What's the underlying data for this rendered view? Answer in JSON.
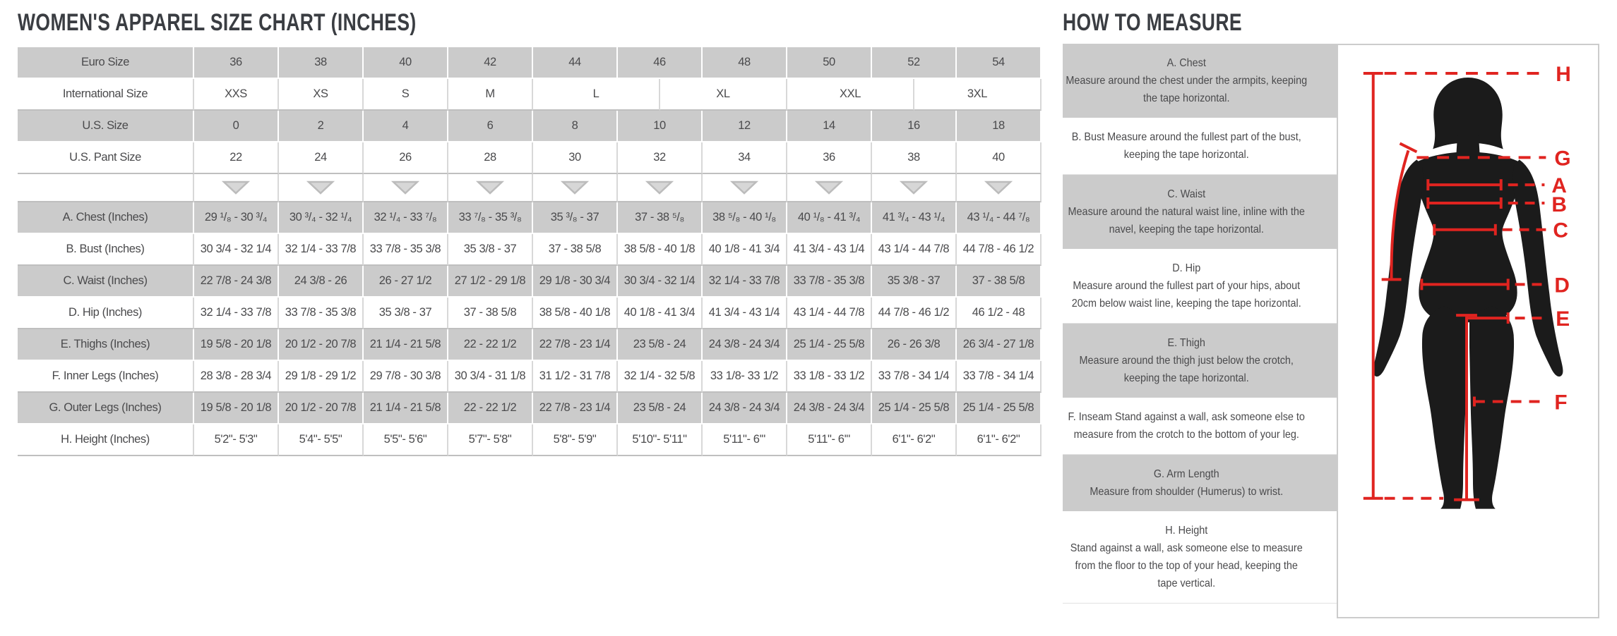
{
  "size_chart": {
    "title": "WOMEN'S APPAREL SIZE CHART (INCHES)",
    "euro": {
      "label": "Euro Size",
      "values": [
        "36",
        "38",
        "40",
        "42",
        "44",
        "46",
        "48",
        "50",
        "52",
        "54"
      ]
    },
    "international": {
      "label": "International Size",
      "cells": [
        "XXS",
        "XS",
        "S",
        "M",
        "L",
        "XL",
        "XXL",
        "3XL"
      ]
    },
    "us": {
      "label": "U.S. Size",
      "values": [
        "0",
        "2",
        "4",
        "6",
        "8",
        "10",
        "12",
        "14",
        "16",
        "18"
      ]
    },
    "us_pant": {
      "label": "U.S. Pant Size",
      "values": [
        "22",
        "24",
        "26",
        "28",
        "30",
        "32",
        "34",
        "36",
        "38",
        "40"
      ]
    },
    "measure_rows": [
      {
        "label": "A. Chest (Inches)",
        "values": [
          "29 ¹/₈ - 30 ³/₄",
          "30 ³/₄ - 32 ¹/₄",
          "32 ¹/₄ - 33 ⁷/₈",
          "33 ⁷/₈ - 35 ³/₈",
          "35 ³/₈ - 37",
          "37 - 38 ⁵/₈",
          "38 ⁵/₈ - 40 ¹/₈",
          "40 ¹/₈ - 41 ³/₄",
          "41 ³/₄ - 43 ¹/₄",
          "43 ¹/₄ - 44 ⁷/₈"
        ]
      },
      {
        "label": "B. Bust (Inches)",
        "values": [
          "30 3/4 - 32 1/4",
          "32 1/4 - 33 7/8",
          "33 7/8 - 35 3/8",
          "35 3/8 - 37",
          "37 - 38 5/8",
          "38 5/8 - 40 1/8",
          "40 1/8 - 41 3/4",
          "41 3/4 - 43 1/4",
          "43 1/4 - 44 7/8",
          "44 7/8 - 46 1/2"
        ]
      },
      {
        "label": "C. Waist (Inches)",
        "values": [
          "22 7/8 - 24 3/8",
          "24 3/8 - 26",
          "26 - 27 1/2",
          "27 1/2 - 29 1/8",
          "29 1/8 - 30 3/4",
          "30 3/4 - 32 1/4",
          "32 1/4 - 33 7/8",
          "33 7/8 - 35 3/8",
          "35 3/8 - 37",
          "37 - 38 5/8"
        ]
      },
      {
        "label": "D. Hip (Inches)",
        "values": [
          "32 1/4 - 33 7/8",
          "33 7/8 - 35 3/8",
          "35 3/8 - 37",
          "37 - 38 5/8",
          "38 5/8 - 40 1/8",
          "40 1/8 - 41 3/4",
          "41 3/4 - 43 1/4",
          "43 1/4 - 44 7/8",
          "44 7/8 - 46 1/2",
          "46 1/2 - 48"
        ]
      },
      {
        "label": "E. Thighs (Inches)",
        "values": [
          "19 5/8 - 20 1/8",
          "20 1/2 - 20 7/8",
          "21 1/4 - 21 5/8",
          "22 - 22 1/2",
          "22 7/8 - 23 1/4",
          "23 5/8 - 24",
          "24 3/8 - 24 3/4",
          "25 1/4 - 25 5/8",
          "26 - 26 3/8",
          "26 3/4 - 27 1/8"
        ]
      },
      {
        "label": "F. Inner Legs (Inches)",
        "values": [
          "28 3/8 - 28 3/4",
          "29 1/8 - 29 1/2",
          "29 7/8 - 30 3/8",
          "30 3/4 - 31 1/8",
          "31 1/2 - 31 7/8",
          "32 1/4 - 32 5/8",
          "33 1/8- 33 1/2",
          "33 1/8 - 33 1/2",
          "33 7/8 - 34 1/4",
          "33 7/8 - 34 1/4"
        ]
      },
      {
        "label": "G. Outer Legs (Inches)",
        "values": [
          "19 5/8 - 20 1/8",
          "20 1/2 - 20 7/8",
          "21 1/4 - 21 5/8",
          "22 - 22 1/2",
          "22 7/8 - 23 1/4",
          "23 5/8 - 24",
          "24 3/8 - 24 3/4",
          "24 3/8 - 24 3/4",
          "25 1/4 - 25 5/8",
          "25 1/4 - 25 5/8"
        ]
      },
      {
        "label": "H. Height (Inches)",
        "values": [
          "5'2\"- 5'3\"",
          "5'4\"- 5'5\"",
          "5'5\"- 5'6\"",
          "5'7\"- 5'8\"",
          "5'8\"- 5'9\"",
          "5'10\"- 5'11\"",
          "5'11\"- 6'\"",
          "5'11\"- 6'\"",
          "6'1\"- 6'2\"",
          "6'1\"- 6'2\""
        ]
      }
    ]
  },
  "how_to_measure": {
    "title": "HOW TO MEASURE",
    "items": [
      {
        "heading": "A. Chest",
        "text": "Measure around the chest under the armpits, keeping the tape horizontal."
      },
      {
        "heading": "",
        "text": "B. Bust Measure around the fullest part of the bust, keeping the tape horizontal."
      },
      {
        "heading": "C. Waist",
        "text": "Measure around the natural waist line, inline with the navel, keeping the tape horizontal."
      },
      {
        "heading": "D. Hip",
        "text": "Measure around the fullest part of your hips, about 20cm below waist line, keeping the tape horizontal."
      },
      {
        "heading": "E. Thigh",
        "text": "Measure around the thigh just below the crotch, keeping the tape horizontal."
      },
      {
        "heading": "",
        "text": "F. Inseam Stand against a wall, ask someone else to measure from the crotch to the bottom of your leg."
      },
      {
        "heading": "G. Arm Length",
        "text": "Measure from shoulder (Humerus) to wrist."
      },
      {
        "heading": "H. Height",
        "text": "Stand against a wall, ask someone else to measure from the floor to the top of your head, keeping the tape vertical."
      }
    ],
    "figure_labels": [
      "H",
      "G",
      "A",
      "B",
      "C",
      "D",
      "E",
      "F"
    ]
  },
  "colors": {
    "accent_red": "#e02420",
    "row_gray": "#cbcbcb",
    "silhouette": "#1b1b1b",
    "title_text": "#3a3d42",
    "body_text": "#4a4a4c"
  }
}
